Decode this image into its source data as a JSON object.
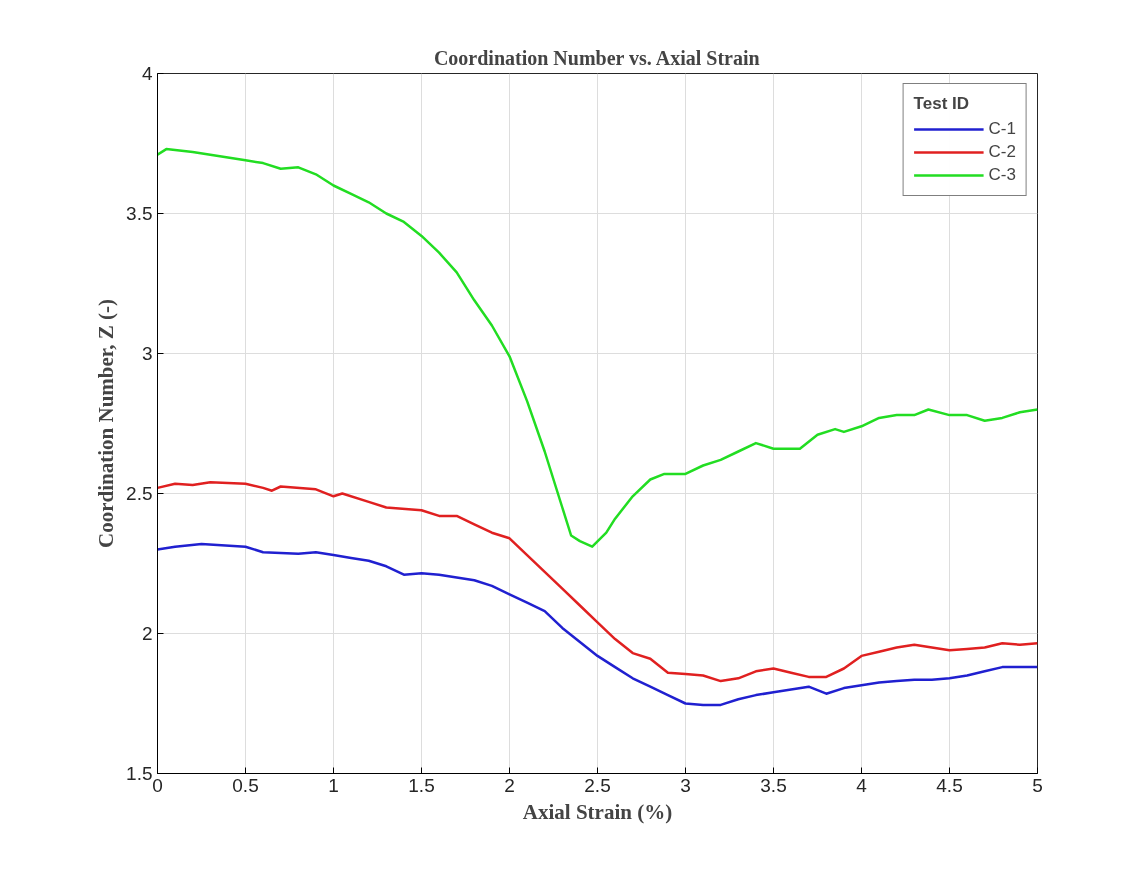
{
  "chart_data": {
    "type": "line",
    "title": "Coordination Number vs. Axial Strain",
    "xlabel": "Axial Strain (%)",
    "ylabel": "Coordination Number, Z (-)",
    "legend_title": "Test ID",
    "xlim": [
      0,
      5
    ],
    "ylim": [
      1.5,
      4
    ],
    "xticks": [
      0,
      0.5,
      1,
      1.5,
      2,
      2.5,
      3,
      3.5,
      4,
      4.5,
      5
    ],
    "yticks": [
      1.5,
      2,
      2.5,
      3,
      3.5,
      4
    ],
    "grid": true,
    "legend": "top right",
    "marker": "none",
    "line_style": "solid",
    "series": [
      {
        "name": "C-1",
        "color": "#2020d0",
        "x": [
          0,
          0.1,
          0.25,
          0.5,
          0.6,
          0.8,
          0.9,
          1.0,
          1.1,
          1.2,
          1.3,
          1.4,
          1.5,
          1.6,
          1.7,
          1.8,
          1.9,
          2.0,
          2.1,
          2.2,
          2.3,
          2.4,
          2.5,
          2.6,
          2.7,
          2.8,
          2.9,
          3.0,
          3.1,
          3.2,
          3.3,
          3.4,
          3.5,
          3.6,
          3.7,
          3.8,
          3.9,
          4.0,
          4.1,
          4.2,
          4.3,
          4.4,
          4.5,
          4.6,
          4.7,
          4.8,
          4.9,
          5.0
        ],
        "values": [
          2.3,
          2.31,
          2.32,
          2.31,
          2.29,
          2.285,
          2.29,
          2.28,
          2.27,
          2.26,
          2.24,
          2.21,
          2.215,
          2.21,
          2.2,
          2.19,
          2.17,
          2.14,
          2.11,
          2.08,
          2.02,
          1.97,
          1.92,
          1.88,
          1.84,
          1.81,
          1.78,
          1.75,
          1.745,
          1.745,
          1.765,
          1.78,
          1.79,
          1.8,
          1.81,
          1.785,
          1.805,
          1.815,
          1.825,
          1.83,
          1.835,
          1.835,
          1.84,
          1.85,
          1.865,
          1.88,
          1.88,
          1.88
        ]
      },
      {
        "name": "C-2",
        "color": "#e02020",
        "x": [
          0,
          0.1,
          0.2,
          0.3,
          0.5,
          0.6,
          0.65,
          0.7,
          0.9,
          1.0,
          1.05,
          1.2,
          1.3,
          1.5,
          1.6,
          1.7,
          1.8,
          1.9,
          2.0,
          2.1,
          2.2,
          2.3,
          2.4,
          2.5,
          2.6,
          2.7,
          2.8,
          2.9,
          3.0,
          3.1,
          3.2,
          3.3,
          3.4,
          3.5,
          3.6,
          3.7,
          3.8,
          3.9,
          4.0,
          4.1,
          4.2,
          4.3,
          4.4,
          4.5,
          4.6,
          4.7,
          4.8,
          4.9,
          5.0
        ],
        "values": [
          2.52,
          2.535,
          2.53,
          2.54,
          2.535,
          2.52,
          2.51,
          2.525,
          2.515,
          2.49,
          2.5,
          2.47,
          2.45,
          2.44,
          2.42,
          2.42,
          2.39,
          2.36,
          2.34,
          2.28,
          2.22,
          2.16,
          2.1,
          2.04,
          1.98,
          1.93,
          1.91,
          1.86,
          1.855,
          1.85,
          1.83,
          1.84,
          1.865,
          1.875,
          1.86,
          1.845,
          1.845,
          1.875,
          1.92,
          1.935,
          1.95,
          1.96,
          1.95,
          1.94,
          1.945,
          1.95,
          1.965,
          1.96,
          1.965
        ]
      },
      {
        "name": "C-3",
        "color": "#22dd22",
        "x": [
          0,
          0.05,
          0.2,
          0.4,
          0.5,
          0.6,
          0.7,
          0.8,
          0.9,
          1.0,
          1.1,
          1.2,
          1.3,
          1.4,
          1.5,
          1.6,
          1.7,
          1.8,
          1.9,
          2.0,
          2.1,
          2.2,
          2.3,
          2.35,
          2.4,
          2.47,
          2.55,
          2.6,
          2.7,
          2.8,
          2.88,
          3.0,
          3.1,
          3.2,
          3.3,
          3.4,
          3.5,
          3.65,
          3.75,
          3.85,
          3.9,
          4.0,
          4.1,
          4.2,
          4.3,
          4.38,
          4.5,
          4.6,
          4.7,
          4.8,
          4.9,
          5.0
        ],
        "values": [
          3.71,
          3.73,
          3.72,
          3.7,
          3.69,
          3.68,
          3.66,
          3.665,
          3.64,
          3.6,
          3.57,
          3.54,
          3.5,
          3.47,
          3.42,
          3.36,
          3.29,
          3.19,
          3.1,
          2.99,
          2.83,
          2.65,
          2.45,
          2.35,
          2.33,
          2.31,
          2.36,
          2.41,
          2.49,
          2.55,
          2.57,
          2.57,
          2.6,
          2.62,
          2.65,
          2.68,
          2.66,
          2.66,
          2.71,
          2.73,
          2.72,
          2.74,
          2.77,
          2.78,
          2.78,
          2.8,
          2.78,
          2.78,
          2.76,
          2.77,
          2.79,
          2.8
        ]
      }
    ]
  }
}
